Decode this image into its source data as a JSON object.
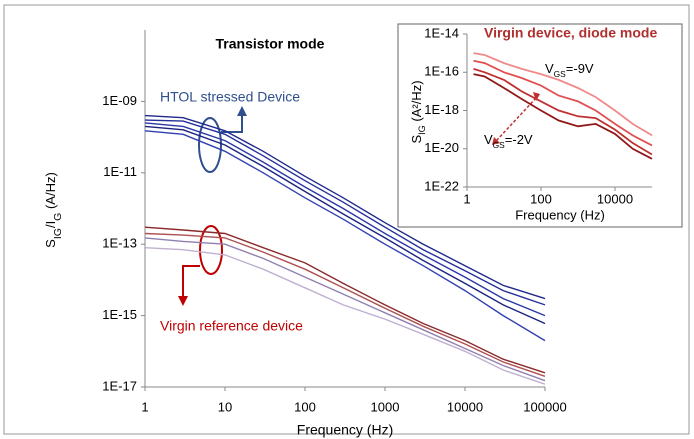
{
  "chart_data": [
    {
      "type": "line",
      "title": "Transistor mode",
      "xlabel": "Frequency (Hz)",
      "ylabel": [
        "S",
        "IG",
        "/I",
        "G",
        " (A/Hz)"
      ],
      "annotations": [
        "HTOL stressed Device",
        "Virgin reference device"
      ],
      "xscale": "log",
      "yscale": "log",
      "x": [
        1,
        3,
        10,
        30,
        100,
        300,
        1000,
        3000,
        10000,
        30000,
        100000
      ],
      "xlim": [
        1,
        100000
      ],
      "xticks": [
        1,
        10,
        100,
        1000,
        10000,
        100000
      ],
      "ylim": [
        1e-17,
        1e-07
      ],
      "yticks": [
        {
          "value": 1e-17,
          "label": "1E-17"
        },
        {
          "value": 1e-15,
          "label": "1E-15"
        },
        {
          "value": 1e-13,
          "label": "1E-13"
        },
        {
          "value": 1e-11,
          "label": "1E-11"
        },
        {
          "value": 1e-09,
          "label": "1E-09"
        }
      ],
      "series": [
        {
          "color": "#1f2a8c",
          "values": [
            4e-10,
            3.5e-10,
            1.5e-10,
            4e-11,
            8e-12,
            2e-12,
            4e-13,
            1e-13,
            2.5e-14,
            7e-15,
            3e-15
          ]
        },
        {
          "color": "#24309a",
          "values": [
            3e-10,
            2.8e-10,
            1.2e-10,
            3e-11,
            6e-12,
            1.5e-12,
            3e-13,
            7e-14,
            1.8e-14,
            5e-15,
            2e-15
          ]
        },
        {
          "color": "#2a38a8",
          "values": [
            2.5e-10,
            2e-10,
            8e-11,
            2e-11,
            4e-12,
            1e-12,
            2e-13,
            5e-14,
            1.2e-14,
            3e-15,
            1e-15
          ]
        },
        {
          "color": "#1a2480",
          "values": [
            2e-10,
            1.6e-10,
            6e-11,
            1.5e-11,
            3e-12,
            7e-13,
            1.5e-13,
            3.5e-14,
            8e-15,
            2e-15,
            6e-16
          ]
        },
        {
          "color": "#3040b0",
          "values": [
            1.5e-10,
            1.2e-10,
            4e-11,
            1e-11,
            2e-12,
            5e-13,
            1e-13,
            2.5e-14,
            5e-15,
            1e-15,
            2e-16
          ]
        },
        {
          "color": "#8b2a2a",
          "values": [
            3e-13,
            2.5e-13,
            2e-13,
            8e-14,
            3e-14,
            8e-15,
            2e-15,
            6e-16,
            2e-16,
            6e-17,
            2.5e-17
          ]
        },
        {
          "color": "#b05050",
          "values": [
            2e-13,
            1.8e-13,
            1.5e-13,
            6e-14,
            2e-14,
            6e-15,
            1.6e-15,
            5e-16,
            1.6e-16,
            5e-17,
            2e-17
          ]
        },
        {
          "color": "#9080b0",
          "values": [
            1.5e-13,
            1.2e-13,
            1e-13,
            4e-14,
            1.2e-14,
            4e-15,
            1.2e-15,
            4e-16,
            1.2e-16,
            4e-17,
            1.5e-17
          ]
        },
        {
          "color": "#c0b0d0",
          "values": [
            8e-14,
            7e-14,
            5e-14,
            2e-14,
            6e-15,
            2e-15,
            8e-16,
            3e-16,
            1e-16,
            3e-17,
            1.2e-17
          ]
        }
      ]
    },
    {
      "type": "line",
      "title": "Virgin device, diode mode",
      "xlabel": "Frequency (Hz)",
      "ylabel": [
        "S",
        "IG",
        " (A²/Hz)"
      ],
      "annotations": [
        [
          "V",
          "GS",
          "=-9V"
        ],
        [
          "V",
          "GS",
          "=-2V"
        ]
      ],
      "xscale": "log",
      "yscale": "log",
      "x": [
        1.5,
        3,
        10,
        30,
        100,
        300,
        1000,
        3000,
        10000,
        30000,
        100000
      ],
      "xlim": [
        1,
        100000
      ],
      "xticks": [
        1,
        100,
        10000
      ],
      "ylim": [
        1e-22,
        1e-14
      ],
      "yticks": [
        {
          "value": 1e-22,
          "label": "1E-22"
        },
        {
          "value": 1e-20,
          "label": "1E-20"
        },
        {
          "value": 1e-18,
          "label": "1E-18"
        },
        {
          "value": 1e-16,
          "label": "1E-16"
        },
        {
          "value": 1e-14,
          "label": "1E-14"
        }
      ],
      "series": [
        {
          "color": "#f08a8a",
          "values": [
            1e-15,
            8e-16,
            3e-16,
            1.5e-16,
            8e-17,
            4e-17,
            1.5e-17,
            5e-18,
            1e-18,
            2e-19,
            5e-20
          ]
        },
        {
          "color": "#e05050",
          "values": [
            4e-16,
            3e-16,
            1e-16,
            5e-17,
            2e-17,
            6e-18,
            3e-18,
            1e-18,
            2e-19,
            5e-20,
            1.5e-20
          ]
        },
        {
          "color": "#c03030",
          "values": [
            1.5e-16,
            1e-16,
            4e-17,
            1e-17,
            3e-18,
            1e-18,
            5e-19,
            4e-19,
            1e-19,
            2e-20,
            5e-21
          ]
        },
        {
          "color": "#901818",
          "values": [
            8e-17,
            6e-17,
            1.5e-17,
            4e-18,
            1e-18,
            3e-19,
            1.5e-19,
            2e-19,
            6e-20,
            1e-20,
            3e-21
          ]
        }
      ]
    }
  ]
}
